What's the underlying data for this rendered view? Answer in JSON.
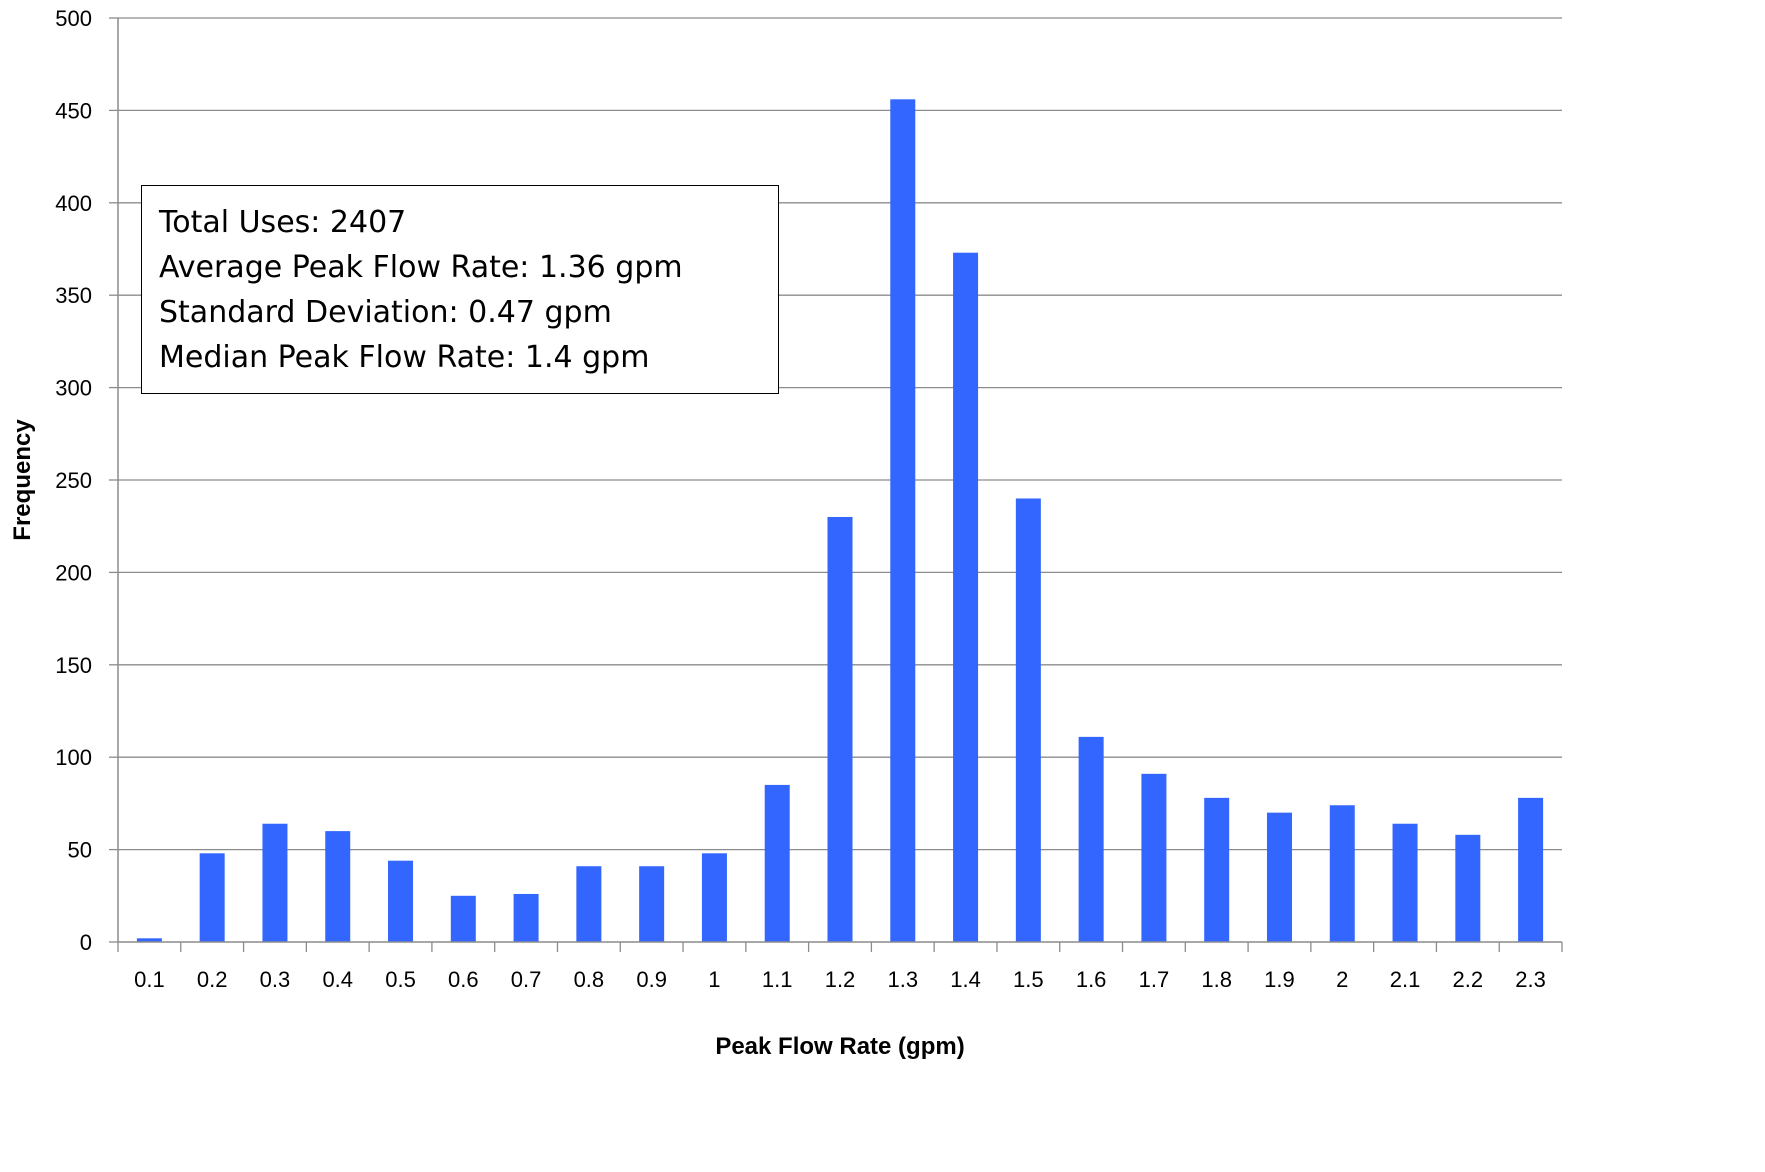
{
  "chart_data": {
    "type": "bar",
    "title": "",
    "xlabel": "Peak Flow Rate (gpm)",
    "ylabel": "Frequency",
    "ylim": [
      0,
      500
    ],
    "yticks": [
      "0",
      "50",
      "100",
      "150",
      "200",
      "250",
      "300",
      "350",
      "400",
      "450",
      "500"
    ],
    "grid": true,
    "legend": "none",
    "bar_color": "#3366FF",
    "categories": [
      "0.1",
      "0.2",
      "0.3",
      "0.4",
      "0.5",
      "0.6",
      "0.7",
      "0.8",
      "0.9",
      "1",
      "1.1",
      "1.2",
      "1.3",
      "1.4",
      "1.5",
      "1.6",
      "1.7",
      "1.8",
      "1.9",
      "2",
      "2.1",
      "2.2",
      "2.3"
    ],
    "values": [
      2,
      48,
      64,
      60,
      44,
      25,
      26,
      41,
      41,
      48,
      85,
      230,
      456,
      373,
      240,
      111,
      91,
      78,
      70,
      74,
      64,
      58,
      78
    ],
    "annotations": [
      "Total Uses: 2407",
      "Average Peak Flow Rate: 1.36 gpm",
      "Standard Deviation: 0.47 gpm",
      "Median Peak Flow Rate: 1.4 gpm"
    ]
  }
}
